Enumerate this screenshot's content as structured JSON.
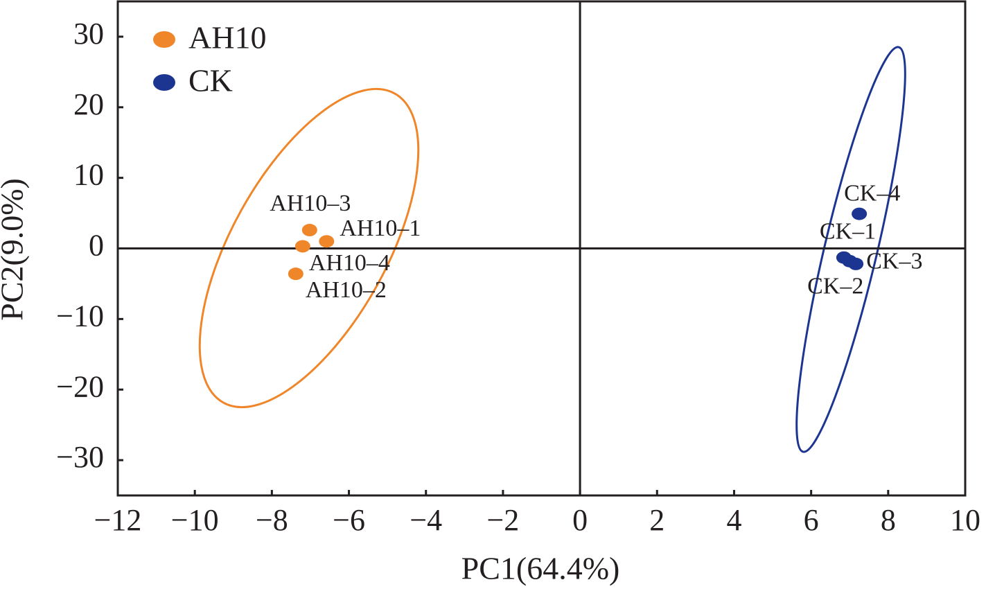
{
  "chart_data": {
    "type": "scatter",
    "xlabel": "PC1(64.4%)",
    "ylabel": "PC2(9.0%)",
    "xlim": [
      -12,
      10
    ],
    "xticks": [
      {
        "value": -12,
        "label": "−12"
      },
      {
        "value": -10,
        "label": "−10"
      },
      {
        "value": -8,
        "label": "−8"
      },
      {
        "value": -6,
        "label": "−6"
      },
      {
        "value": -4,
        "label": "−4"
      },
      {
        "value": -2,
        "label": "−2"
      },
      0,
      2,
      4,
      6,
      8,
      10
    ],
    "ylim": [
      -35,
      35
    ],
    "yticks": [
      {
        "value": -30,
        "label": "−30"
      },
      {
        "value": -20,
        "label": "−20"
      },
      {
        "value": -10,
        "label": "−10"
      },
      0,
      10,
      20,
      30
    ],
    "legend": "upper left",
    "series": [
      {
        "name": "AH10",
        "color": "#f0862a",
        "labels": [
          "AH10–3",
          "AH10–1",
          "AH10–4",
          "AH10–2"
        ],
        "x": [
          -7.02,
          -6.58,
          -7.2,
          -7.38
        ],
        "values": [
          2.6,
          1.0,
          0.3,
          -3.6
        ]
      },
      {
        "name": "CK",
        "color": "#1c3591",
        "labels": [
          "CK–4",
          "CK–1",
          "CK–3",
          "CK–2"
        ],
        "x": [
          7.25,
          6.85,
          7.0,
          7.16
        ],
        "values": [
          4.9,
          -1.3,
          -1.8,
          -2.2
        ]
      }
    ]
  }
}
